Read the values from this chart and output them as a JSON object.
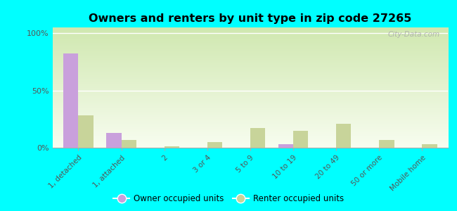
{
  "title": "Owners and renters by unit type in zip code 27265",
  "categories": [
    "1, detached",
    "1, attached",
    "2",
    "3 or 4",
    "5 to 9",
    "10 to 19",
    "20 to 49",
    "50 or more",
    "Mobile home"
  ],
  "owner_values": [
    82,
    13,
    0.3,
    0.3,
    0.3,
    3,
    0.3,
    0.3,
    0.3
  ],
  "renter_values": [
    28,
    7,
    1.5,
    5,
    17,
    15,
    21,
    7,
    3
  ],
  "owner_color": "#c9a0dc",
  "renter_color": "#c8d49a",
  "outer_background": "#00ffff",
  "plot_bg_top": "#d0e8b0",
  "plot_bg_bottom": "#f8fdf0",
  "yticks": [
    0,
    50,
    100
  ],
  "ytick_labels": [
    "0%",
    "50%",
    "100%"
  ],
  "ylim": [
    0,
    105
  ],
  "legend_owner": "Owner occupied units",
  "legend_renter": "Renter occupied units",
  "watermark": "City-Data.com"
}
